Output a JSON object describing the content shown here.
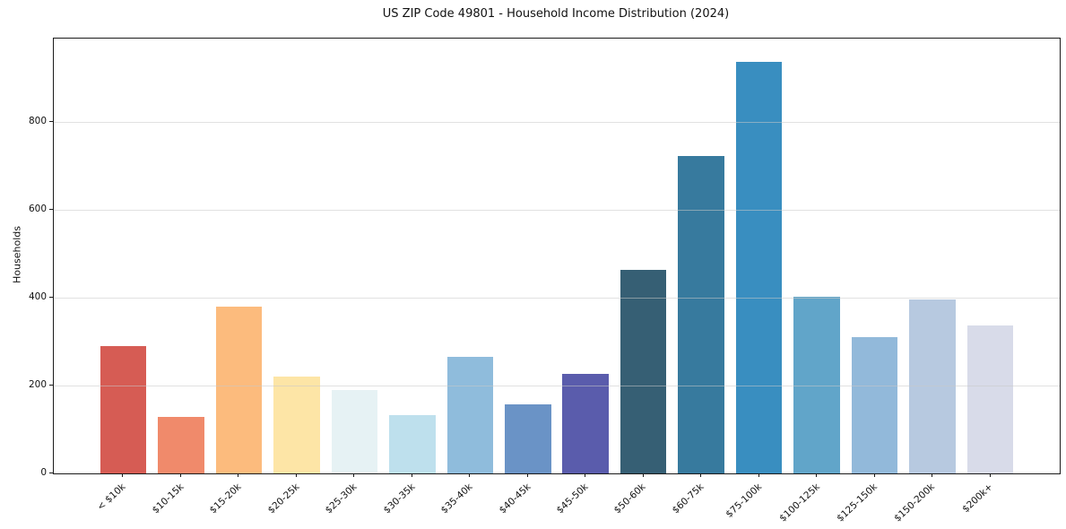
{
  "figure": {
    "title": "US ZIP Code 49801 - Household Income Distribution (2024)"
  },
  "chart_data": {
    "type": "bar",
    "title": "US ZIP Code 49801 - Household Income Distribution (2024)",
    "xlabel": "",
    "ylabel": "Households",
    "categories": [
      "< $10k",
      "$10-15k",
      "$15-20k",
      "$20-25k",
      "$25-30k",
      "$30-35k",
      "$35-40k",
      "$40-45k",
      "$45-50k",
      "$50-60k",
      "$60-75k",
      "$75-100k",
      "$100-125k",
      "$125-150k",
      "$150-200k",
      "$200k+"
    ],
    "values": [
      290,
      129,
      380,
      220,
      190,
      133,
      265,
      157,
      227,
      463,
      722,
      937,
      402,
      310,
      396,
      337
    ],
    "bar_colors": [
      "#d65c54",
      "#f08a6b",
      "#fcbb7d",
      "#fde5a6",
      "#e6f2f4",
      "#bee0ed",
      "#8fbcdc",
      "#6a93c6",
      "#5a5cac",
      "#365f74",
      "#377a9e",
      "#398ec0",
      "#61a5c9",
      "#92b9da",
      "#b7c9e0",
      "#d8dbe9"
    ],
    "ylim": [
      0,
      990
    ],
    "yticks": [
      0,
      200,
      400,
      600,
      800
    ],
    "grid": "horizontal",
    "grid_above_bars": true,
    "legend": "none",
    "x_tick_rotation": 45
  },
  "colors": {
    "background": "#ffffff",
    "spine": "#1a1a1a",
    "gridline": "rgba(200,200,200,0.55)",
    "text": "#111111"
  }
}
